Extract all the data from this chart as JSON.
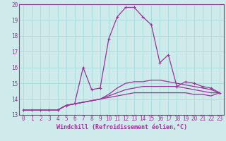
{
  "xlabel": "Windchill (Refroidissement éolien,°C)",
  "x_values": [
    0,
    1,
    2,
    3,
    4,
    5,
    6,
    7,
    8,
    9,
    10,
    11,
    12,
    13,
    14,
    15,
    16,
    17,
    18,
    19,
    20,
    21,
    22,
    23
  ],
  "lines": [
    [
      13.3,
      13.3,
      13.3,
      13.3,
      13.3,
      13.6,
      13.7,
      16.0,
      14.6,
      14.7,
      17.8,
      19.2,
      19.8,
      19.8,
      19.2,
      18.7,
      16.3,
      16.8,
      14.8,
      15.1,
      15.0,
      14.8,
      14.7,
      14.4
    ],
    [
      13.3,
      13.3,
      13.3,
      13.3,
      13.3,
      13.6,
      13.7,
      13.8,
      13.9,
      14.0,
      14.3,
      14.7,
      15.0,
      15.1,
      15.1,
      15.2,
      15.2,
      15.1,
      15.0,
      14.9,
      14.8,
      14.7,
      14.6,
      14.4
    ],
    [
      13.3,
      13.3,
      13.3,
      13.3,
      13.3,
      13.6,
      13.7,
      13.8,
      13.9,
      14.0,
      14.2,
      14.4,
      14.6,
      14.7,
      14.8,
      14.8,
      14.8,
      14.8,
      14.8,
      14.7,
      14.6,
      14.5,
      14.4,
      14.4
    ],
    [
      13.3,
      13.3,
      13.3,
      13.3,
      13.3,
      13.6,
      13.7,
      13.8,
      13.9,
      14.0,
      14.1,
      14.2,
      14.3,
      14.4,
      14.4,
      14.4,
      14.4,
      14.4,
      14.4,
      14.4,
      14.3,
      14.3,
      14.2,
      14.4
    ]
  ],
  "line_color": "#993399",
  "marker": "+",
  "bg_color": "#ceeaea",
  "grid_color": "#aadddd",
  "spine_color": "#993399",
  "ylim": [
    13,
    20
  ],
  "yticks": [
    13,
    14,
    15,
    16,
    17,
    18,
    19,
    20
  ],
  "xticks": [
    0,
    1,
    2,
    3,
    4,
    5,
    6,
    7,
    8,
    9,
    10,
    11,
    12,
    13,
    14,
    15,
    16,
    17,
    18,
    19,
    20,
    21,
    22,
    23
  ],
  "tick_fontsize": 5.5,
  "xlabel_fontsize": 6.0
}
